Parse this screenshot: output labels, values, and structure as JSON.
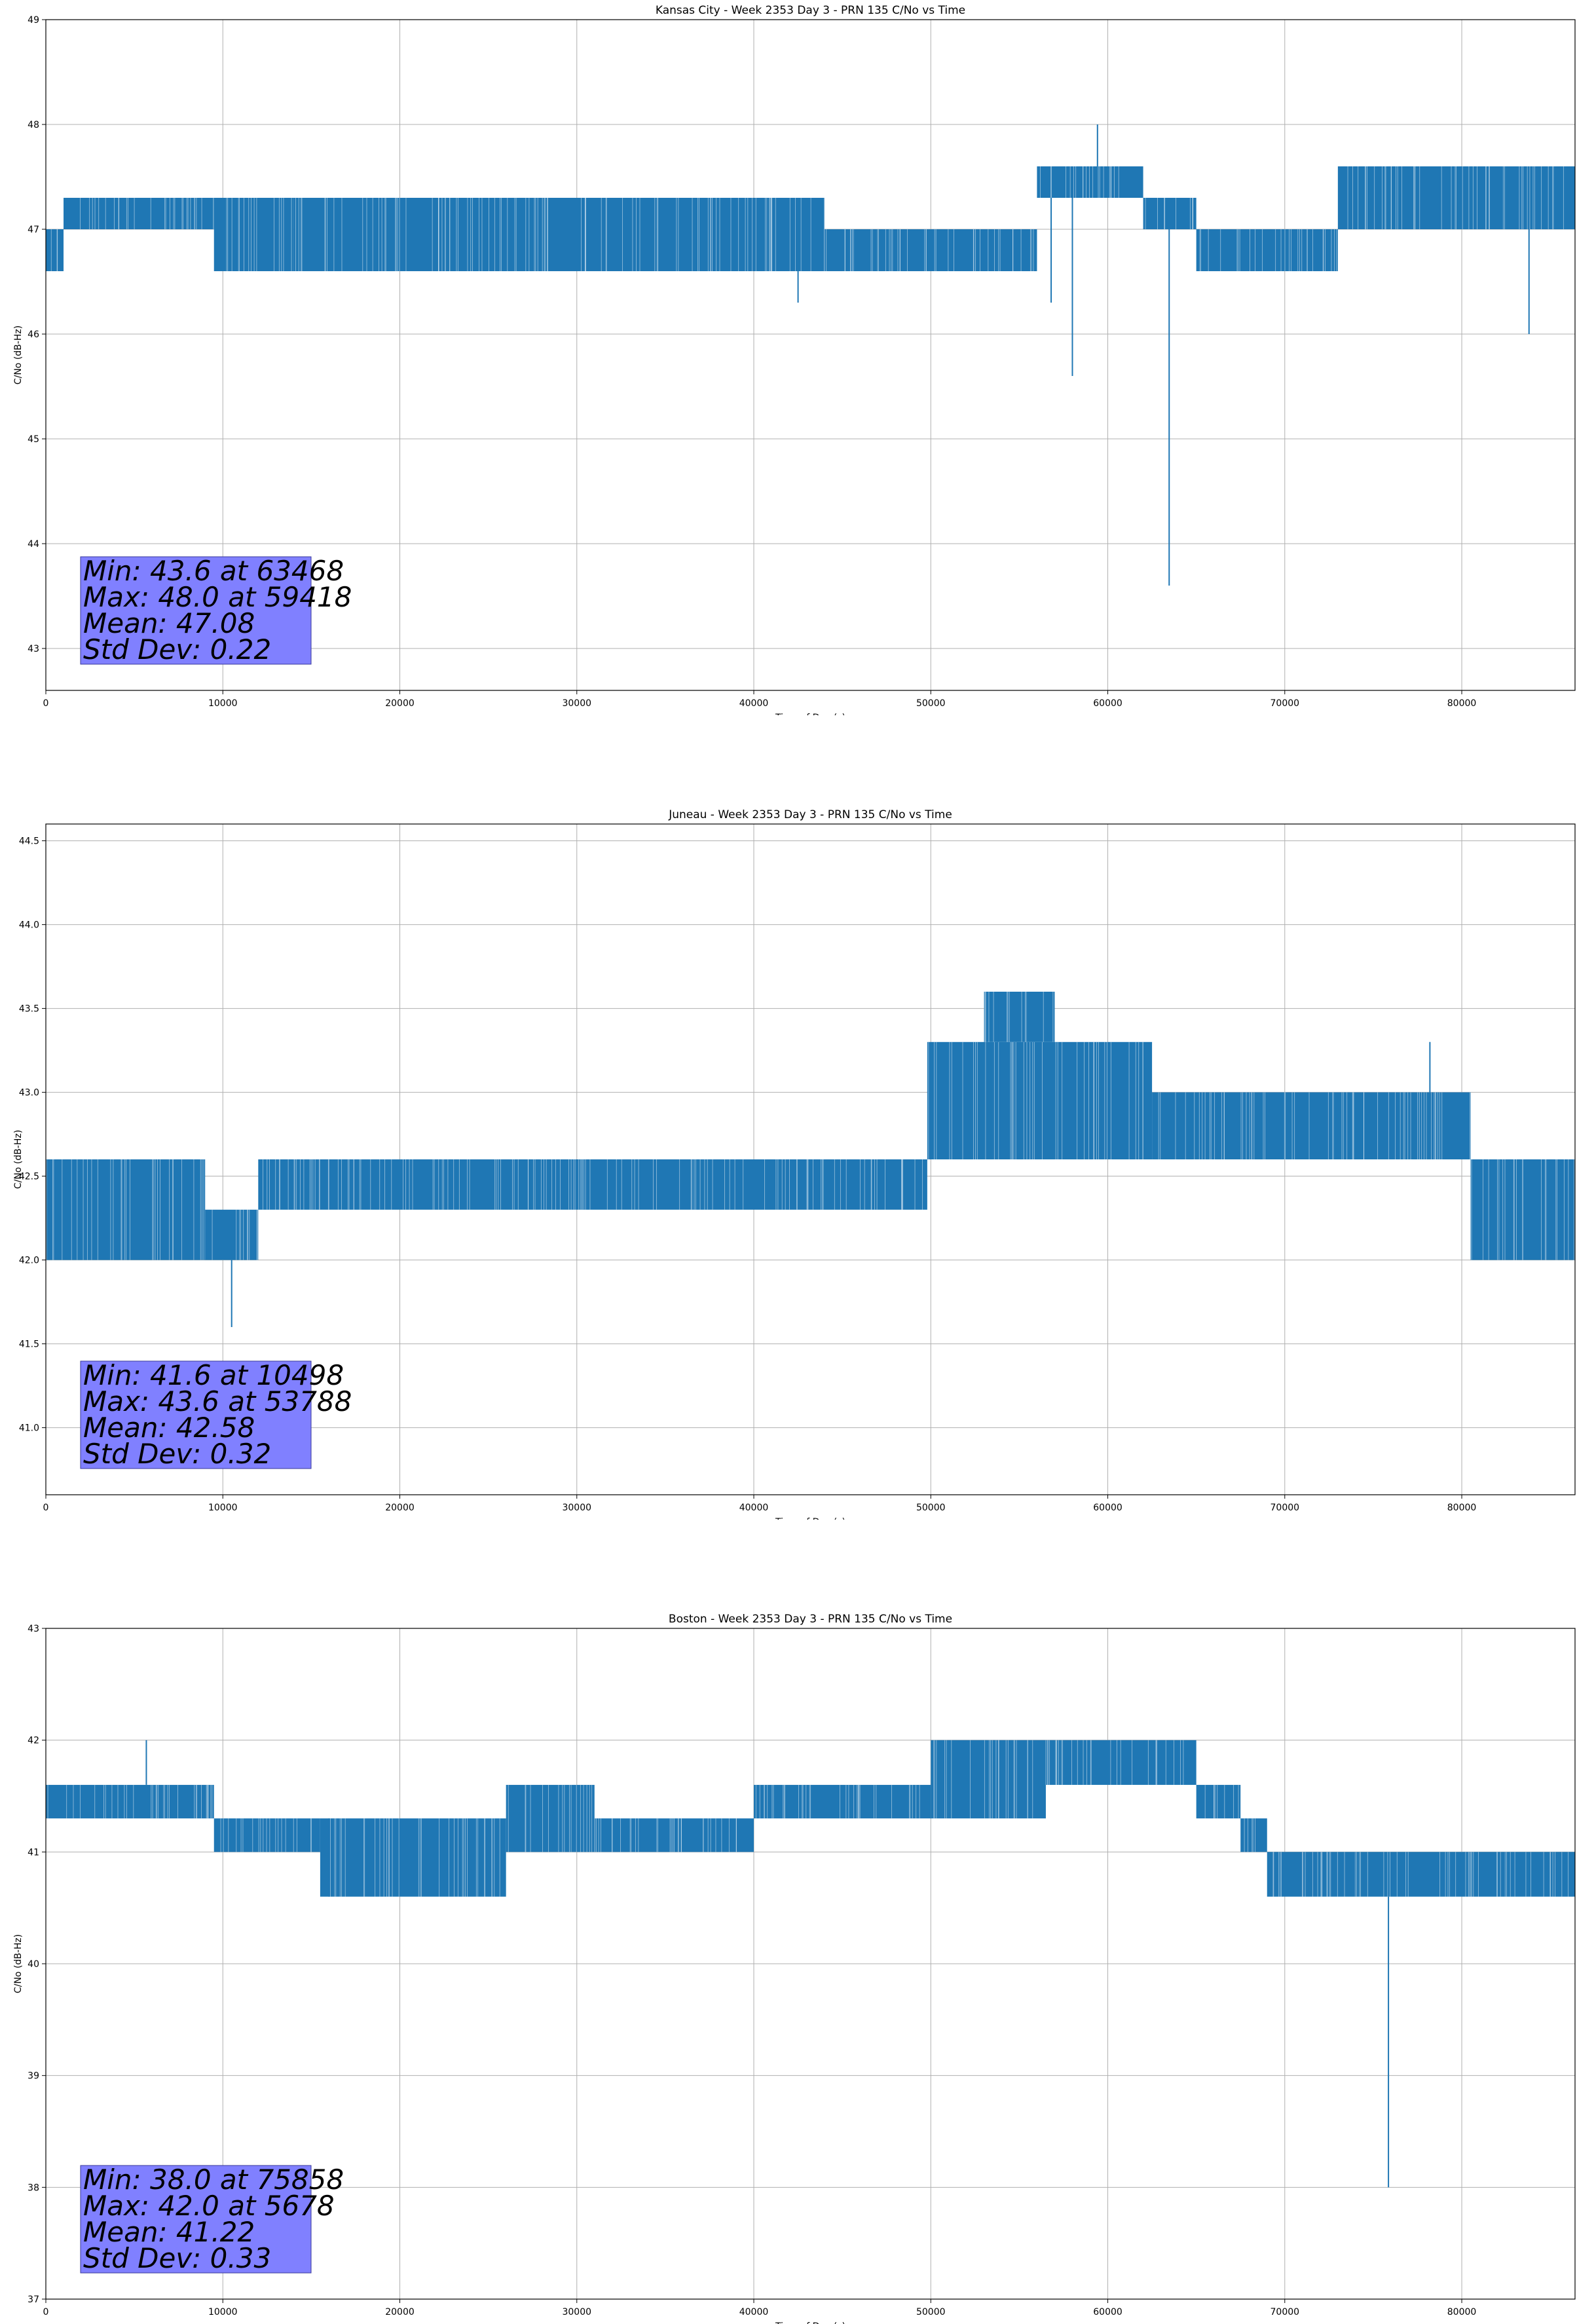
{
  "chart_data": [
    {
      "type": "line",
      "title": "Kansas City - Week 2353 Day 3 - PRN 135 C/No vs Time",
      "xlabel": "Time of Day (s)",
      "ylabel": "C/No (dB-Hz)",
      "xlim": [
        0,
        86400
      ],
      "ylim": [
        42.6,
        49
      ],
      "xticks": [
        0,
        10000,
        20000,
        30000,
        40000,
        50000,
        60000,
        70000,
        80000
      ],
      "yticks": [
        43,
        44,
        45,
        46,
        47,
        48,
        49
      ],
      "grid": true,
      "line_color": "#1f77b4",
      "series": [
        {
          "segments": [
            {
              "x0": 0,
              "x1": 1000,
              "low": 46.6,
              "high": 47.0
            },
            {
              "x0": 1000,
              "x1": 9500,
              "low": 47.0,
              "high": 47.3
            },
            {
              "x0": 9500,
              "x1": 14000,
              "low": 46.6,
              "high": 47.3
            },
            {
              "x0": 14000,
              "x1": 34500,
              "low": 46.6,
              "high": 47.3
            },
            {
              "x0": 34500,
              "x1": 44000,
              "low": 46.6,
              "high": 47.3
            },
            {
              "x0": 44000,
              "x1": 56000,
              "low": 46.6,
              "high": 47.0
            },
            {
              "x0": 56000,
              "x1": 62000,
              "low": 47.3,
              "high": 47.6
            },
            {
              "x0": 62000,
              "x1": 65000,
              "low": 47.0,
              "high": 47.3
            },
            {
              "x0": 65000,
              "x1": 73000,
              "low": 46.6,
              "high": 47.0
            },
            {
              "x0": 73000,
              "x1": 86400,
              "low": 47.0,
              "high": 47.6
            }
          ],
          "spikes": [
            {
              "x": 63468,
              "y": 43.6
            },
            {
              "x": 59418,
              "y": 48.0
            },
            {
              "x": 58000,
              "y": 45.6
            },
            {
              "x": 83800,
              "y": 46.0
            },
            {
              "x": 42500,
              "y": 46.3
            },
            {
              "x": 56800,
              "y": 46.3
            }
          ]
        }
      ],
      "stats": [
        "Min: 43.6 at 63468",
        "Max: 48.0 at 59418",
        "Mean: 47.08",
        "Std Dev: 0.22"
      ]
    },
    {
      "type": "line",
      "title": "Juneau - Week 2353 Day 3 - PRN 135 C/No vs Time",
      "xlabel": "Time of Day (s)",
      "ylabel": "C/No (dB-Hz)",
      "xlim": [
        0,
        86400
      ],
      "ylim": [
        40.6,
        44.6
      ],
      "xticks": [
        0,
        10000,
        20000,
        30000,
        40000,
        50000,
        60000,
        70000,
        80000
      ],
      "yticks": [
        41.0,
        41.5,
        42.0,
        42.5,
        43.0,
        43.5,
        44.0,
        44.5
      ],
      "ytick_labels": [
        "41.0",
        "41.5",
        "42.0",
        "42.5",
        "43.0",
        "43.5",
        "44.0",
        "44.5"
      ],
      "grid": true,
      "line_color": "#1f77b4",
      "series": [
        {
          "segments": [
            {
              "x0": 0,
              "x1": 9000,
              "low": 42.0,
              "high": 42.6
            },
            {
              "x0": 9000,
              "x1": 12000,
              "low": 42.0,
              "high": 42.3
            },
            {
              "x0": 12000,
              "x1": 49800,
              "low": 42.3,
              "high": 42.6
            },
            {
              "x0": 49800,
              "x1": 62500,
              "low": 42.6,
              "high": 43.3
            },
            {
              "x0": 53000,
              "x1": 57000,
              "low": 43.3,
              "high": 43.6
            },
            {
              "x0": 62500,
              "x1": 80500,
              "low": 42.6,
              "high": 43.0
            },
            {
              "x0": 80500,
              "x1": 86400,
              "low": 42.0,
              "high": 42.6
            }
          ],
          "spikes": [
            {
              "x": 10498,
              "y": 41.6
            },
            {
              "x": 53788,
              "y": 43.6
            },
            {
              "x": 78200,
              "y": 43.3
            }
          ]
        }
      ],
      "stats": [
        "Min: 41.6 at 10498",
        "Max: 43.6 at 53788",
        "Mean: 42.58",
        "Std Dev: 0.32"
      ]
    },
    {
      "type": "line",
      "title": "Boston - Week 2353 Day 3 - PRN 135 C/No vs Time",
      "xlabel": "Time of Day (s)",
      "ylabel": "C/No (dB-Hz)",
      "xlim": [
        0,
        86400
      ],
      "ylim": [
        37,
        43
      ],
      "xticks": [
        0,
        10000,
        20000,
        30000,
        40000,
        50000,
        60000,
        70000,
        80000
      ],
      "yticks": [
        37,
        38,
        39,
        40,
        41,
        42,
        43
      ],
      "grid": true,
      "line_color": "#1f77b4",
      "series": [
        {
          "segments": [
            {
              "x0": 0,
              "x1": 9500,
              "low": 41.3,
              "high": 41.6
            },
            {
              "x0": 9500,
              "x1": 15500,
              "low": 41.0,
              "high": 41.3
            },
            {
              "x0": 15500,
              "x1": 26000,
              "low": 40.6,
              "high": 41.3
            },
            {
              "x0": 26000,
              "x1": 31000,
              "low": 41.0,
              "high": 41.6
            },
            {
              "x0": 31000,
              "x1": 40000,
              "low": 41.0,
              "high": 41.3
            },
            {
              "x0": 40000,
              "x1": 50000,
              "low": 41.3,
              "high": 41.6
            },
            {
              "x0": 50000,
              "x1": 56500,
              "low": 41.3,
              "high": 42.0
            },
            {
              "x0": 56500,
              "x1": 65000,
              "low": 41.6,
              "high": 42.0
            },
            {
              "x0": 65000,
              "x1": 67500,
              "low": 41.3,
              "high": 41.6
            },
            {
              "x0": 67500,
              "x1": 69000,
              "low": 41.0,
              "high": 41.3
            },
            {
              "x0": 69000,
              "x1": 86400,
              "low": 40.6,
              "high": 41.0
            }
          ],
          "spikes": [
            {
              "x": 75858,
              "y": 38.0
            },
            {
              "x": 5678,
              "y": 42.0
            },
            {
              "x": 16000,
              "y": 40.6
            }
          ]
        }
      ],
      "stats": [
        "Min: 38.0 at 75858",
        "Max: 42.0 at 5678",
        "Mean: 41.22",
        "Std Dev: 0.33"
      ]
    }
  ]
}
